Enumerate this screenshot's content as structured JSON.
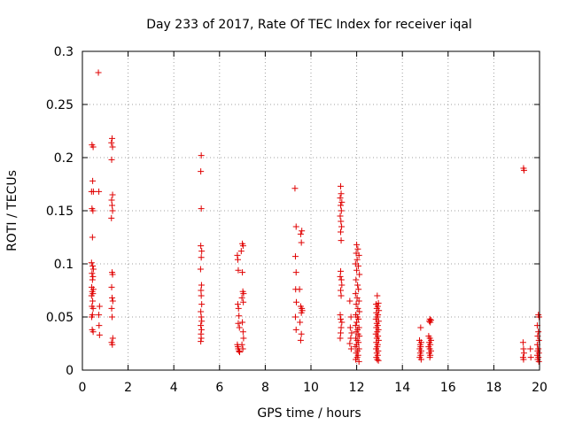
{
  "chart_data": {
    "type": "scatter",
    "title": "Day 233 of 2017, Rate Of TEC Index for receiver iqal",
    "xlabel": "GPS time / hours",
    "ylabel": "ROTI / TECUs",
    "xlim": [
      0,
      20
    ],
    "ylim": [
      0,
      0.3
    ],
    "xticks": [
      0,
      2,
      4,
      6,
      8,
      10,
      12,
      14,
      16,
      18,
      20
    ],
    "yticks": [
      0,
      0.05,
      0.1,
      0.15,
      0.2,
      0.25,
      0.3
    ],
    "xtick_labels": [
      "0",
      "2",
      "4",
      "6",
      "8",
      "10",
      "12",
      "14",
      "16",
      "18",
      "20"
    ],
    "ytick_labels": [
      "0",
      "0.05",
      "0.1",
      "0.15",
      "0.2",
      "0.25",
      "0.3"
    ],
    "grid": true,
    "marker": "+",
    "color": "#e00000",
    "points": [
      [
        0.7,
        0.28
      ],
      [
        0.42,
        0.212
      ],
      [
        0.47,
        0.21
      ],
      [
        0.45,
        0.178
      ],
      [
        0.4,
        0.168
      ],
      [
        0.48,
        0.168
      ],
      [
        0.72,
        0.168
      ],
      [
        0.42,
        0.152
      ],
      [
        0.46,
        0.15
      ],
      [
        0.44,
        0.125
      ],
      [
        0.4,
        0.101
      ],
      [
        0.45,
        0.098
      ],
      [
        0.48,
        0.095
      ],
      [
        0.42,
        0.091
      ],
      [
        0.46,
        0.088
      ],
      [
        0.44,
        0.085
      ],
      [
        0.41,
        0.078
      ],
      [
        0.48,
        0.076
      ],
      [
        0.43,
        0.074
      ],
      [
        0.46,
        0.072
      ],
      [
        0.4,
        0.07
      ],
      [
        0.45,
        0.065
      ],
      [
        0.42,
        0.06
      ],
      [
        0.47,
        0.058
      ],
      [
        0.44,
        0.052
      ],
      [
        0.41,
        0.05
      ],
      [
        0.75,
        0.06
      ],
      [
        0.72,
        0.052
      ],
      [
        0.73,
        0.042
      ],
      [
        0.43,
        0.038
      ],
      [
        0.47,
        0.036
      ],
      [
        0.75,
        0.033
      ],
      [
        1.3,
        0.218
      ],
      [
        1.27,
        0.214
      ],
      [
        1.32,
        0.21
      ],
      [
        1.28,
        0.198
      ],
      [
        1.32,
        0.165
      ],
      [
        1.28,
        0.16
      ],
      [
        1.3,
        0.155
      ],
      [
        1.32,
        0.15
      ],
      [
        1.27,
        0.143
      ],
      [
        1.3,
        0.092
      ],
      [
        1.32,
        0.09
      ],
      [
        1.28,
        0.078
      ],
      [
        1.3,
        0.068
      ],
      [
        1.33,
        0.065
      ],
      [
        1.28,
        0.058
      ],
      [
        1.3,
        0.05
      ],
      [
        1.33,
        0.03
      ],
      [
        1.28,
        0.026
      ],
      [
        1.31,
        0.024
      ],
      [
        5.2,
        0.202
      ],
      [
        5.18,
        0.187
      ],
      [
        5.2,
        0.152
      ],
      [
        5.18,
        0.117
      ],
      [
        5.22,
        0.112
      ],
      [
        5.2,
        0.106
      ],
      [
        5.17,
        0.095
      ],
      [
        5.21,
        0.08
      ],
      [
        5.19,
        0.075
      ],
      [
        5.2,
        0.07
      ],
      [
        5.22,
        0.062
      ],
      [
        5.18,
        0.055
      ],
      [
        5.2,
        0.05
      ],
      [
        5.22,
        0.046
      ],
      [
        5.18,
        0.042
      ],
      [
        5.21,
        0.038
      ],
      [
        5.19,
        0.034
      ],
      [
        5.2,
        0.03
      ],
      [
        5.18,
        0.027
      ],
      [
        7.0,
        0.119
      ],
      [
        7.03,
        0.117
      ],
      [
        6.95,
        0.112
      ],
      [
        6.78,
        0.108
      ],
      [
        6.8,
        0.104
      ],
      [
        6.82,
        0.094
      ],
      [
        7.0,
        0.092
      ],
      [
        7.02,
        0.074
      ],
      [
        7.05,
        0.072
      ],
      [
        6.98,
        0.068
      ],
      [
        7.04,
        0.064
      ],
      [
        6.8,
        0.062
      ],
      [
        6.83,
        0.058
      ],
      [
        6.85,
        0.051
      ],
      [
        6.82,
        0.044
      ],
      [
        6.87,
        0.04
      ],
      [
        7.0,
        0.045
      ],
      [
        7.03,
        0.036
      ],
      [
        7.05,
        0.03
      ],
      [
        6.98,
        0.024
      ],
      [
        6.8,
        0.022
      ],
      [
        6.82,
        0.02
      ],
      [
        6.85,
        0.018
      ],
      [
        6.88,
        0.017
      ],
      [
        7.02,
        0.02
      ],
      [
        6.78,
        0.024
      ],
      [
        9.3,
        0.171
      ],
      [
        9.35,
        0.135
      ],
      [
        9.6,
        0.131
      ],
      [
        9.55,
        0.128
      ],
      [
        9.58,
        0.12
      ],
      [
        9.32,
        0.107
      ],
      [
        9.35,
        0.092
      ],
      [
        9.5,
        0.076
      ],
      [
        9.33,
        0.076
      ],
      [
        9.36,
        0.064
      ],
      [
        9.55,
        0.06
      ],
      [
        9.6,
        0.058
      ],
      [
        9.62,
        0.056
      ],
      [
        9.58,
        0.054
      ],
      [
        9.32,
        0.05
      ],
      [
        9.52,
        0.045
      ],
      [
        9.35,
        0.038
      ],
      [
        9.58,
        0.034
      ],
      [
        9.55,
        0.028
      ],
      [
        11.3,
        0.173
      ],
      [
        11.32,
        0.166
      ],
      [
        11.28,
        0.162
      ],
      [
        11.35,
        0.158
      ],
      [
        11.3,
        0.155
      ],
      [
        11.33,
        0.15
      ],
      [
        11.28,
        0.145
      ],
      [
        11.31,
        0.14
      ],
      [
        11.34,
        0.135
      ],
      [
        11.3,
        0.13
      ],
      [
        11.32,
        0.122
      ],
      [
        11.3,
        0.093
      ],
      [
        11.28,
        0.088
      ],
      [
        11.33,
        0.085
      ],
      [
        11.35,
        0.08
      ],
      [
        11.3,
        0.075
      ],
      [
        11.32,
        0.07
      ],
      [
        11.28,
        0.052
      ],
      [
        11.3,
        0.048
      ],
      [
        11.35,
        0.045
      ],
      [
        11.32,
        0.04
      ],
      [
        11.3,
        0.035
      ],
      [
        11.28,
        0.03
      ],
      [
        12.0,
        0.118
      ],
      [
        12.05,
        0.114
      ],
      [
        11.98,
        0.11
      ],
      [
        12.1,
        0.108
      ],
      [
        12.02,
        0.104
      ],
      [
        11.95,
        0.1
      ],
      [
        12.07,
        0.098
      ],
      [
        12.0,
        0.094
      ],
      [
        12.12,
        0.09
      ],
      [
        11.97,
        0.085
      ],
      [
        12.04,
        0.08
      ],
      [
        12.08,
        0.076
      ],
      [
        11.95,
        0.072
      ],
      [
        12.02,
        0.068
      ],
      [
        12.1,
        0.065
      ],
      [
        11.98,
        0.062
      ],
      [
        12.05,
        0.058
      ],
      [
        12.12,
        0.055
      ],
      [
        11.96,
        0.052
      ],
      [
        12.03,
        0.05
      ],
      [
        12.08,
        0.048
      ],
      [
        12.0,
        0.045
      ],
      [
        11.95,
        0.042
      ],
      [
        12.1,
        0.04
      ],
      [
        12.04,
        0.038
      ],
      [
        11.98,
        0.036
      ],
      [
        12.06,
        0.034
      ],
      [
        12.12,
        0.032
      ],
      [
        11.96,
        0.03
      ],
      [
        12.02,
        0.028
      ],
      [
        12.08,
        0.026
      ],
      [
        12.0,
        0.024
      ],
      [
        11.94,
        0.022
      ],
      [
        12.1,
        0.02
      ],
      [
        12.04,
        0.018
      ],
      [
        11.98,
        0.016
      ],
      [
        12.06,
        0.014
      ],
      [
        12.02,
        0.012
      ],
      [
        11.96,
        0.01
      ],
      [
        12.1,
        0.008
      ],
      [
        11.7,
        0.065
      ],
      [
        11.75,
        0.05
      ],
      [
        11.72,
        0.04
      ],
      [
        11.78,
        0.035
      ],
      [
        11.74,
        0.03
      ],
      [
        11.7,
        0.025
      ],
      [
        11.76,
        0.02
      ],
      [
        12.9,
        0.07
      ],
      [
        12.95,
        0.063
      ],
      [
        12.85,
        0.062
      ],
      [
        12.92,
        0.06
      ],
      [
        12.88,
        0.058
      ],
      [
        12.97,
        0.056
      ],
      [
        12.86,
        0.054
      ],
      [
        12.93,
        0.052
      ],
      [
        12.9,
        0.05
      ],
      [
        12.84,
        0.048
      ],
      [
        12.96,
        0.046
      ],
      [
        12.88,
        0.044
      ],
      [
        12.92,
        0.042
      ],
      [
        12.86,
        0.04
      ],
      [
        12.95,
        0.038
      ],
      [
        12.9,
        0.036
      ],
      [
        12.84,
        0.034
      ],
      [
        12.93,
        0.032
      ],
      [
        12.88,
        0.03
      ],
      [
        12.96,
        0.028
      ],
      [
        12.86,
        0.026
      ],
      [
        12.92,
        0.024
      ],
      [
        12.9,
        0.022
      ],
      [
        12.85,
        0.02
      ],
      [
        12.94,
        0.018
      ],
      [
        12.88,
        0.016
      ],
      [
        12.92,
        0.014
      ],
      [
        12.86,
        0.012
      ],
      [
        12.9,
        0.01
      ],
      [
        12.95,
        0.009
      ],
      [
        14.8,
        0.04
      ],
      [
        14.75,
        0.028
      ],
      [
        14.82,
        0.026
      ],
      [
        14.78,
        0.024
      ],
      [
        14.8,
        0.022
      ],
      [
        14.76,
        0.02
      ],
      [
        14.82,
        0.018
      ],
      [
        14.78,
        0.016
      ],
      [
        14.8,
        0.014
      ],
      [
        14.76,
        0.012
      ],
      [
        14.82,
        0.01
      ],
      [
        15.2,
        0.048
      ],
      [
        15.25,
        0.047
      ],
      [
        15.18,
        0.046
      ],
      [
        15.22,
        0.045
      ],
      [
        15.15,
        0.032
      ],
      [
        15.2,
        0.03
      ],
      [
        15.25,
        0.028
      ],
      [
        15.18,
        0.026
      ],
      [
        15.22,
        0.024
      ],
      [
        15.15,
        0.022
      ],
      [
        15.2,
        0.02
      ],
      [
        15.25,
        0.018
      ],
      [
        15.18,
        0.016
      ],
      [
        15.22,
        0.014
      ],
      [
        15.2,
        0.012
      ],
      [
        19.3,
        0.19
      ],
      [
        19.32,
        0.188
      ],
      [
        19.28,
        0.026
      ],
      [
        19.3,
        0.02
      ],
      [
        19.32,
        0.016
      ],
      [
        19.28,
        0.012
      ],
      [
        19.3,
        0.01
      ],
      [
        19.95,
        0.052
      ],
      [
        19.98,
        0.05
      ],
      [
        19.9,
        0.042
      ],
      [
        19.95,
        0.036
      ],
      [
        19.92,
        0.032
      ],
      [
        19.97,
        0.028
      ],
      [
        19.9,
        0.024
      ],
      [
        19.95,
        0.02
      ],
      [
        19.92,
        0.018
      ],
      [
        19.97,
        0.016
      ],
      [
        19.9,
        0.014
      ],
      [
        19.95,
        0.012
      ],
      [
        19.92,
        0.01
      ],
      [
        19.97,
        0.008
      ],
      [
        19.6,
        0.02
      ],
      [
        19.62,
        0.012
      ]
    ]
  }
}
